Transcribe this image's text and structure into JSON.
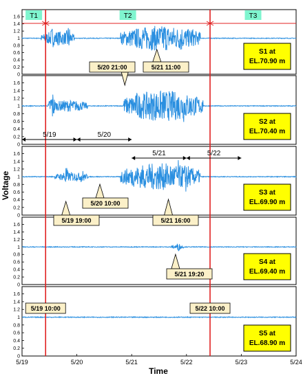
{
  "chart_data": {
    "type": "line",
    "xlabel": "Time",
    "ylabel": "Voltage",
    "xlim": [
      0,
      5
    ],
    "ylim": [
      0,
      1.7
    ],
    "x_ticks": [
      "5/19",
      "5/20",
      "5/21",
      "5/22",
      "5/23",
      "5/24"
    ],
    "y_ticks": [
      "0",
      "0.2",
      "0.4",
      "0.6",
      "0.8",
      "1",
      "1.2",
      "1.4",
      "1.6"
    ],
    "y_ticks_s4": [
      "0",
      "0.2",
      "0.4",
      "0.6",
      "0.8",
      "1",
      "1.2",
      "1.4",
      "1.6"
    ],
    "panels": [
      {
        "label": "S1 at\nEL.70.90 m",
        "active": [
          [
            0.35,
            0.95,
            0.2
          ],
          [
            1.8,
            3.25,
            0.35
          ]
        ],
        "bursts": [
          [
            0.55,
            0.32
          ],
          [
            0.85,
            0.4
          ],
          [
            2.2,
            0.4
          ],
          [
            2.6,
            0.5
          ],
          [
            2.9,
            0.45
          ],
          [
            3.1,
            0.35
          ]
        ]
      },
      {
        "label": "S2 at\nEL.70.40 m",
        "active": [
          [
            0.5,
            1.2,
            0.15
          ],
          [
            1.85,
            3.3,
            0.4
          ]
        ],
        "bursts": [
          [
            0.55,
            0.45
          ],
          [
            2.1,
            0.4
          ],
          [
            2.5,
            0.5
          ],
          [
            2.95,
            0.45
          ],
          [
            3.15,
            0.3
          ]
        ]
      },
      {
        "label": "S3 at\nEL.69.90 m",
        "active": [
          [
            0.6,
            1.2,
            0.12
          ],
          [
            1.8,
            3.25,
            0.35
          ]
        ],
        "bursts": [
          [
            0.8,
            0.3
          ],
          [
            1.1,
            0.2
          ],
          [
            2.2,
            0.3
          ],
          [
            2.85,
            0.45
          ],
          [
            3.0,
            0.5
          ]
        ]
      },
      {
        "label": "S4 at\nEL.69.40 m",
        "active": [
          [
            2.7,
            2.95,
            0.05
          ]
        ],
        "bursts": [
          [
            2.85,
            0.12
          ]
        ]
      },
      {
        "label": "S5 at\nEL.68.90 m",
        "active": [],
        "bursts": []
      }
    ],
    "period_markers": [
      {
        "x": 0.43,
        "label": "5/19 10:00"
      },
      {
        "x": 3.43,
        "label": "5/22 10:00"
      }
    ],
    "periods": [
      {
        "label": "T1",
        "from": 0,
        "to": 0.43
      },
      {
        "label": "T2",
        "from": 0.43,
        "to": 3.43
      },
      {
        "label": "T3",
        "from": 3.43,
        "to": 5
      }
    ],
    "annotations": [
      {
        "text": "5/20 21:00",
        "panel": 0,
        "target_x": 1.875
      },
      {
        "text": "5/21 11:00",
        "panel": 0,
        "target_x": 2.46
      },
      {
        "text": "5/19 19:00",
        "panel": 2,
        "target_x": 0.8
      },
      {
        "text": "5/20 10:00",
        "panel": 2,
        "target_x": 1.42
      },
      {
        "text": "5/21 16:00",
        "panel": 2,
        "target_x": 2.67
      },
      {
        "text": "5/21 19:20",
        "panel": 3,
        "target_x": 2.8
      }
    ],
    "day_spans": [
      {
        "label": "5/19",
        "from": 0,
        "to": 1,
        "panel": 1
      },
      {
        "label": "5/20",
        "from": 1,
        "to": 2,
        "panel": 1
      },
      {
        "label": "5/21",
        "from": 2,
        "to": 3,
        "panel": 2
      },
      {
        "label": "5/22",
        "from": 3,
        "to": 4,
        "panel": 2
      }
    ]
  },
  "colors": {
    "signal": "#2a8fe0",
    "marker": "#e02020",
    "annotation_fill": "#fbf0c8",
    "label_fill": "#ffff00",
    "period_fill": "#7ff5cf"
  }
}
